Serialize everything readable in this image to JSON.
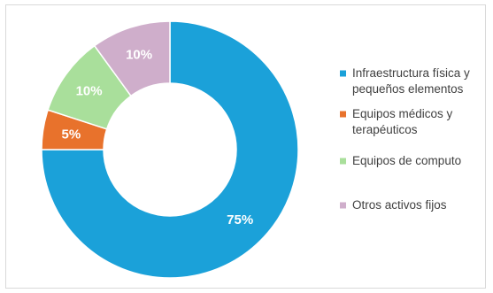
{
  "chart_data": {
    "type": "pie",
    "donut": true,
    "categories": [
      [
        "Infraestructura física y",
        "pequeños elementos"
      ],
      [
        "Equipos médicos y",
        "terapéuticos"
      ],
      [
        "Equipos de computo"
      ],
      [
        "Otros activos fijos"
      ]
    ],
    "values": [
      75,
      5,
      10,
      10
    ],
    "data_labels": [
      "75%",
      "5%",
      "10%",
      "10%"
    ],
    "colors": [
      "#1ba1d9",
      "#e8722c",
      "#a9df9b",
      "#cfaecb"
    ],
    "legend_placement": "right",
    "start_angle_deg": 0,
    "direction": "clockwise"
  }
}
